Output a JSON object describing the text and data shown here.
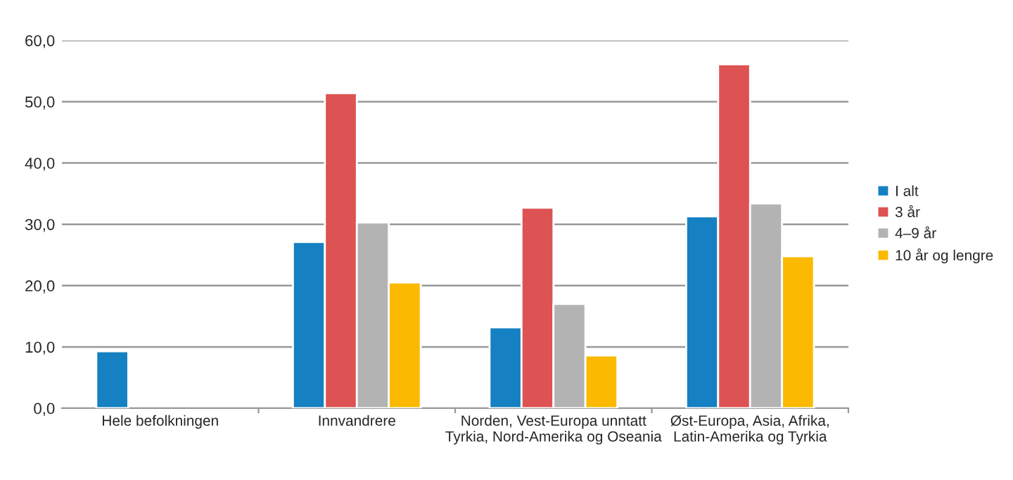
{
  "chart_data": {
    "type": "bar",
    "categories": [
      "Hele befolkningen",
      "Innvandrere",
      "Norden, Vest-Europa unntatt\nTyrkia, Nord-Amerika og Oseania",
      "Øst-Europa, Asia, Afrika,\nLatin-Amerika og Tyrkia"
    ],
    "series": [
      {
        "name": "I alt",
        "color": "#1580c2",
        "values": [
          9.3,
          27.1,
          13.2,
          31.3
        ]
      },
      {
        "name": "3 år",
        "color": "#dd5252",
        "values": [
          null,
          51.4,
          32.7,
          56.1
        ]
      },
      {
        "name": "4–9 år",
        "color": "#b3b3b3",
        "values": [
          null,
          30.3,
          17.0,
          33.4
        ]
      },
      {
        "name": "10 år og lengre",
        "color": "#fbb900",
        "values": [
          null,
          20.5,
          8.6,
          24.8
        ]
      }
    ],
    "ylim": [
      0,
      60
    ],
    "yticks": [
      {
        "value": 0,
        "label": "0,0"
      },
      {
        "value": 10,
        "label": "10,0"
      },
      {
        "value": 20,
        "label": "20,0"
      },
      {
        "value": 30,
        "label": "30,0"
      },
      {
        "value": 40,
        "label": "40,0"
      },
      {
        "value": 50,
        "label": "50,0"
      },
      {
        "value": 60,
        "label": "60,0"
      }
    ],
    "grid": "y",
    "legend": "right"
  }
}
